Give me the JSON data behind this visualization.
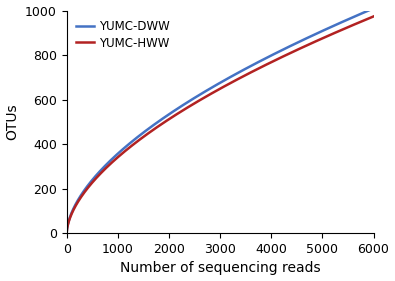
{
  "title": "",
  "xlabel": "Number of sequencing reads",
  "ylabel": "OTUs",
  "xlim": [
    0,
    6000
  ],
  "ylim": [
    0,
    1000
  ],
  "xticks": [
    0,
    1000,
    2000,
    3000,
    4000,
    5000,
    6000
  ],
  "yticks": [
    0,
    200,
    400,
    600,
    800,
    1000
  ],
  "series": [
    {
      "label": "YUMC-DWW",
      "color": "#4472C4",
      "a": 6.5,
      "b": 0.58
    },
    {
      "label": "YUMC-HWW",
      "color": "#B22222",
      "a": 6.0,
      "b": 0.585
    }
  ],
  "legend_loc": "upper left",
  "linewidth": 1.8,
  "background_color": "#ffffff",
  "tick_fontsize": 9,
  "label_fontsize": 10
}
